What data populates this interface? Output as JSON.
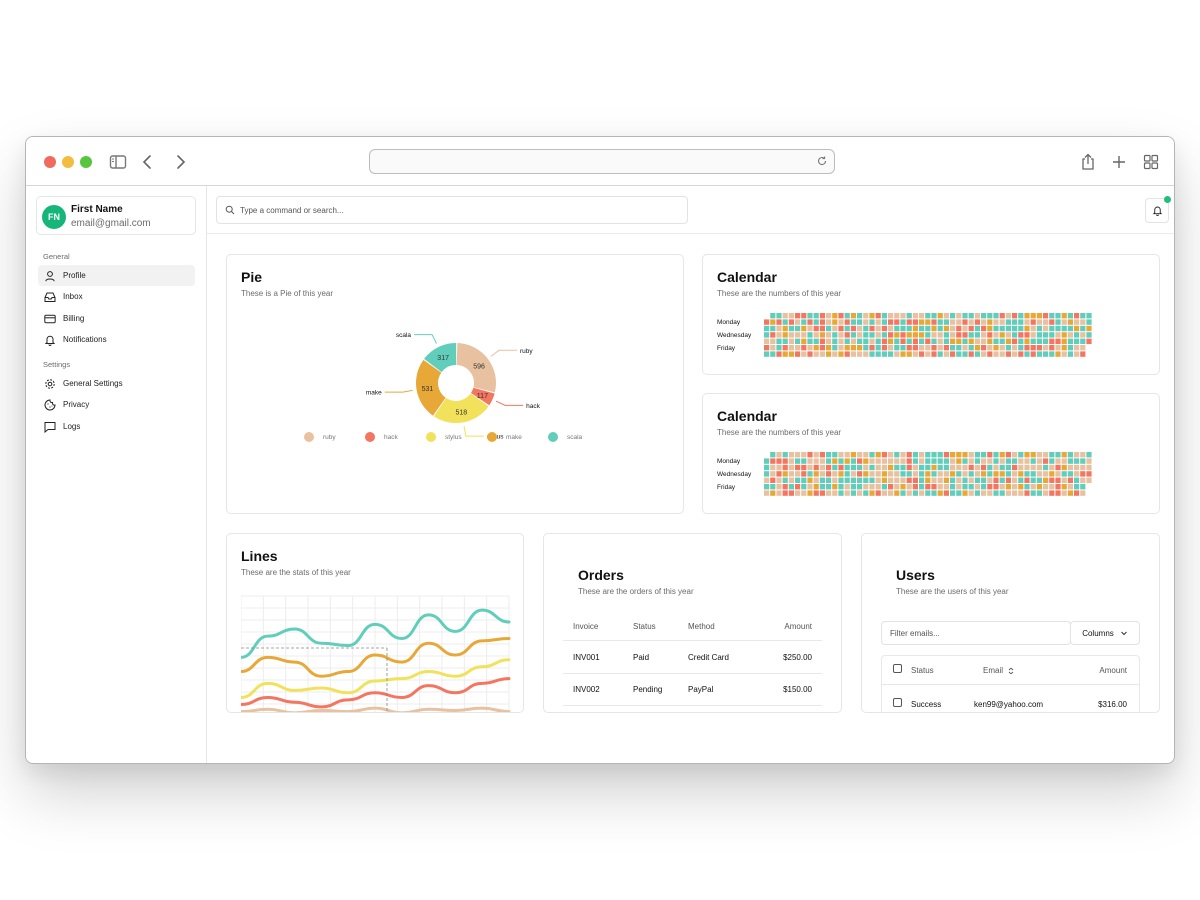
{
  "user": {
    "initials": "FN",
    "name": "First Name",
    "email": "email@gmail.com"
  },
  "sidebar": {
    "sections": [
      {
        "label": "General",
        "items": [
          {
            "label": "Profile",
            "icon": "user-icon",
            "active": true
          },
          {
            "label": "Inbox",
            "icon": "inbox-icon"
          },
          {
            "label": "Billing",
            "icon": "credit-card-icon"
          },
          {
            "label": "Notifications",
            "icon": "bell-icon"
          }
        ]
      },
      {
        "label": "Settings",
        "items": [
          {
            "label": "General Settings",
            "icon": "gear-icon"
          },
          {
            "label": "Privacy",
            "icon": "cookie-icon"
          },
          {
            "label": "Logs",
            "icon": "message-square-icon"
          }
        ]
      }
    ]
  },
  "search": {
    "placeholder": "Type a command or search..."
  },
  "pie_card": {
    "title": "Pie",
    "subtitle": "These is a Pie of this year"
  },
  "calendar_cards": [
    {
      "title": "Calendar",
      "subtitle": "These are the numbers of this year",
      "day_labels": [
        "Monday",
        "Wednesday",
        "Friday"
      ]
    },
    {
      "title": "Calendar",
      "subtitle": "These are the numbers of this year",
      "day_labels": [
        "Monday",
        "Wednesday",
        "Friday"
      ]
    }
  ],
  "lines_card": {
    "title": "Lines",
    "subtitle": "These are the stats of this year"
  },
  "orders_card": {
    "title": "Orders",
    "subtitle": "These are the orders of this year",
    "columns": [
      "Invoice",
      "Status",
      "Method",
      "Amount"
    ],
    "rows": [
      [
        "INV001",
        "Paid",
        "Credit Card",
        "$250.00"
      ],
      [
        "INV002",
        "Pending",
        "PayPal",
        "$150.00"
      ]
    ]
  },
  "users_card": {
    "title": "Users",
    "subtitle": "These are the users of this year",
    "filter_placeholder": "Filter emails...",
    "columns_button": "Columns",
    "columns": [
      "Status",
      "Email",
      "Amount"
    ],
    "rows": [
      [
        "Success",
        "ken99@yahoo.com",
        "$316.00"
      ]
    ]
  },
  "colors": {
    "ruby": "#e8c1a0",
    "hack": "#f47560",
    "stylus": "#f1e15b",
    "make": "#e8a838",
    "scala": "#61cdbb"
  },
  "chart_data": [
    {
      "type": "pie",
      "slices": [
        {
          "label": "ruby",
          "value": 596
        },
        {
          "label": "hack",
          "value": 117
        },
        {
          "label": "stylus",
          "value": 518
        },
        {
          "label": "make",
          "value": 531
        },
        {
          "label": "scala",
          "value": 317
        }
      ],
      "legend": [
        "ruby",
        "hack",
        "stylus",
        "make",
        "scala"
      ]
    },
    {
      "type": "line",
      "series": [
        {
          "color": "#61cdbb",
          "values": [
            48,
            66,
            72,
            60,
            58,
            76,
            64,
            84,
            70,
            88,
            78
          ]
        },
        {
          "color": "#e8a838",
          "values": [
            36,
            48,
            44,
            32,
            36,
            50,
            44,
            60,
            50,
            62,
            64
          ]
        },
        {
          "color": "#f1e15b",
          "values": [
            14,
            26,
            20,
            22,
            18,
            28,
            30,
            36,
            32,
            40,
            46
          ]
        },
        {
          "color": "#f47560",
          "values": [
            8,
            14,
            10,
            6,
            12,
            18,
            14,
            24,
            18,
            26,
            30
          ]
        },
        {
          "color": "#e8c1a0",
          "values": [
            2,
            4,
            1,
            3,
            2,
            5,
            1,
            4,
            3,
            5,
            2
          ]
        }
      ]
    }
  ]
}
